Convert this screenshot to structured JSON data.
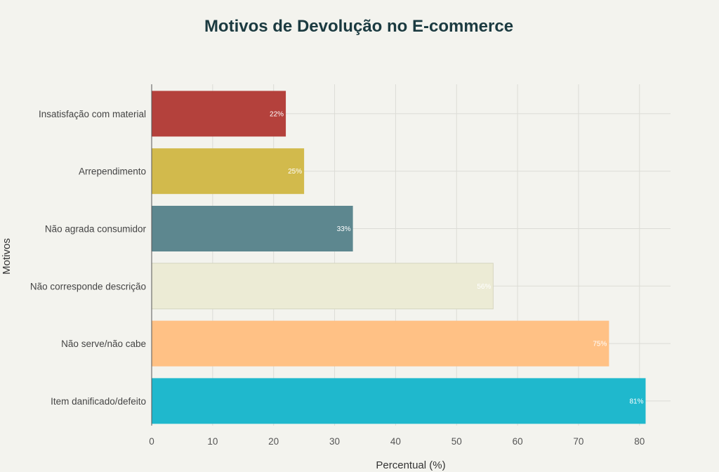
{
  "chart_data": {
    "type": "bar",
    "orientation": "horizontal",
    "title": "Motivos de Devolução no E-commerce",
    "xlabel": "Percentual (%)",
    "ylabel": "Motivos",
    "xlim": [
      0,
      85
    ],
    "xticks": [
      0,
      10,
      20,
      30,
      40,
      50,
      60,
      70,
      80
    ],
    "grid": true,
    "legend": "none",
    "categories": [
      "Insatisfação com material",
      "Arrependimento",
      "Não agrada consumidor",
      "Não corresponde descrição",
      "Não serve/não cabe",
      "Item danificado/defeito"
    ],
    "values": [
      22,
      25,
      33,
      56,
      75,
      81
    ],
    "data_labels": [
      "22%",
      "25%",
      "33%",
      "56%",
      "75%",
      "81%"
    ],
    "colors": [
      "#b4413c",
      "#d2ba4c",
      "#5d878f",
      "#ecebd5",
      "#ffc185",
      "#1fb8cd"
    ]
  }
}
